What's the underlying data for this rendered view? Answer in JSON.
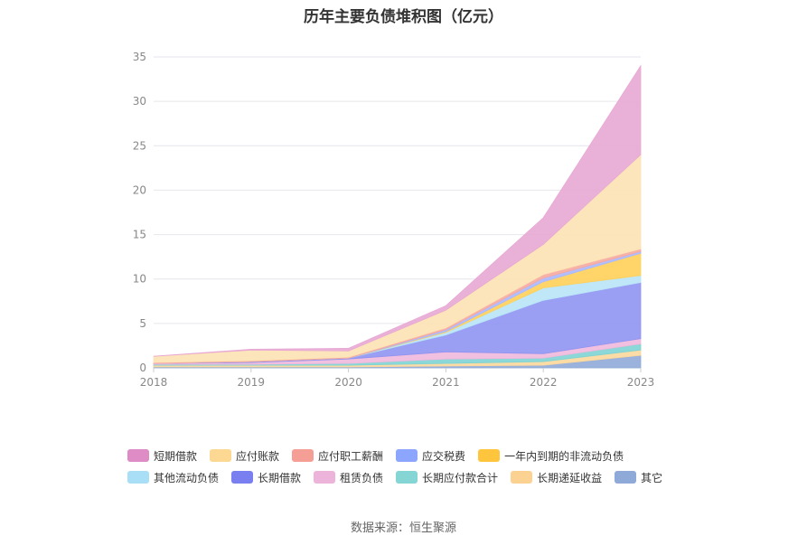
{
  "chart_data": {
    "type": "area",
    "stacked": true,
    "title": "历年主要负债堆积图（亿元）",
    "xlabel": "",
    "ylabel": "",
    "x": [
      "2018",
      "2019",
      "2020",
      "2021",
      "2022",
      "2023"
    ],
    "ylim": [
      0,
      35
    ],
    "yticks": [
      "0",
      "5",
      "10",
      "15",
      "20",
      "25",
      "30",
      "35"
    ],
    "grid": true,
    "legend_position": "bottom",
    "series": [
      {
        "name": "其它",
        "color": "#8faad8",
        "values": [
          0.1,
          0.1,
          0.1,
          0.2,
          0.3,
          1.4
        ]
      },
      {
        "name": "长期递延收益",
        "color": "#fbd89c",
        "values": [
          0.2,
          0.2,
          0.2,
          0.3,
          0.4,
          0.6
        ]
      },
      {
        "name": "长期应付款合计",
        "color": "#7fd3d3",
        "values": [
          0.1,
          0.1,
          0.2,
          0.5,
          0.4,
          0.7
        ]
      },
      {
        "name": "租赁负债",
        "color": "#f0b8dc",
        "values": [
          0.1,
          0.2,
          0.5,
          0.8,
          0.5,
          0.6
        ]
      },
      {
        "name": "长期借款",
        "color": "#8f95f2",
        "values": [
          0.0,
          0.1,
          0.1,
          1.9,
          6.0,
          6.3
        ]
      },
      {
        "name": "其他流动负债",
        "color": "#b8e4f7",
        "values": [
          0.0,
          0.0,
          0.0,
          0.3,
          1.4,
          0.8
        ]
      },
      {
        "name": "一年内到期的非流动负债",
        "color": "#ffd05a",
        "values": [
          0.0,
          0.0,
          0.0,
          0.1,
          0.7,
          2.5
        ]
      },
      {
        "name": "应交税费",
        "color": "#a8b8ff",
        "values": [
          0.0,
          0.0,
          0.0,
          0.2,
          0.4,
          0.2
        ]
      },
      {
        "name": "应付职工薪酬",
        "color": "#f5a8a0",
        "values": [
          0.1,
          0.1,
          0.1,
          0.2,
          0.4,
          0.3
        ]
      },
      {
        "name": "应付账款",
        "color": "#fde2b4",
        "values": [
          0.7,
          1.2,
          0.7,
          2.0,
          3.4,
          10.6
        ]
      },
      {
        "name": "短期借款",
        "color": "#e8a8d4",
        "values": [
          0.0,
          0.1,
          0.3,
          0.5,
          3.0,
          10.0
        ]
      }
    ],
    "legend_order": [
      "短期借款",
      "应付账款",
      "应付职工薪酬",
      "应交税费",
      "一年内到期的非流动负债",
      "其他流动负债",
      "长期借款",
      "租赁负债",
      "长期应付款合计",
      "长期递延收益",
      "其它"
    ],
    "legend_colors": {
      "短期借款": "#de8bc6",
      "应付账款": "#fcd892",
      "应付职工薪酬": "#f59e96",
      "应交税费": "#8ca6ff",
      "一年内到期的非流动负债": "#ffc53d",
      "其他流动负债": "#a9def7",
      "长期借款": "#7a7ff0",
      "租赁负债": "#ecb4da",
      "长期应付款合计": "#86d5d5",
      "长期递延收益": "#fcd292",
      "其它": "#8faad8"
    }
  },
  "source": "数据来源：恒生聚源"
}
